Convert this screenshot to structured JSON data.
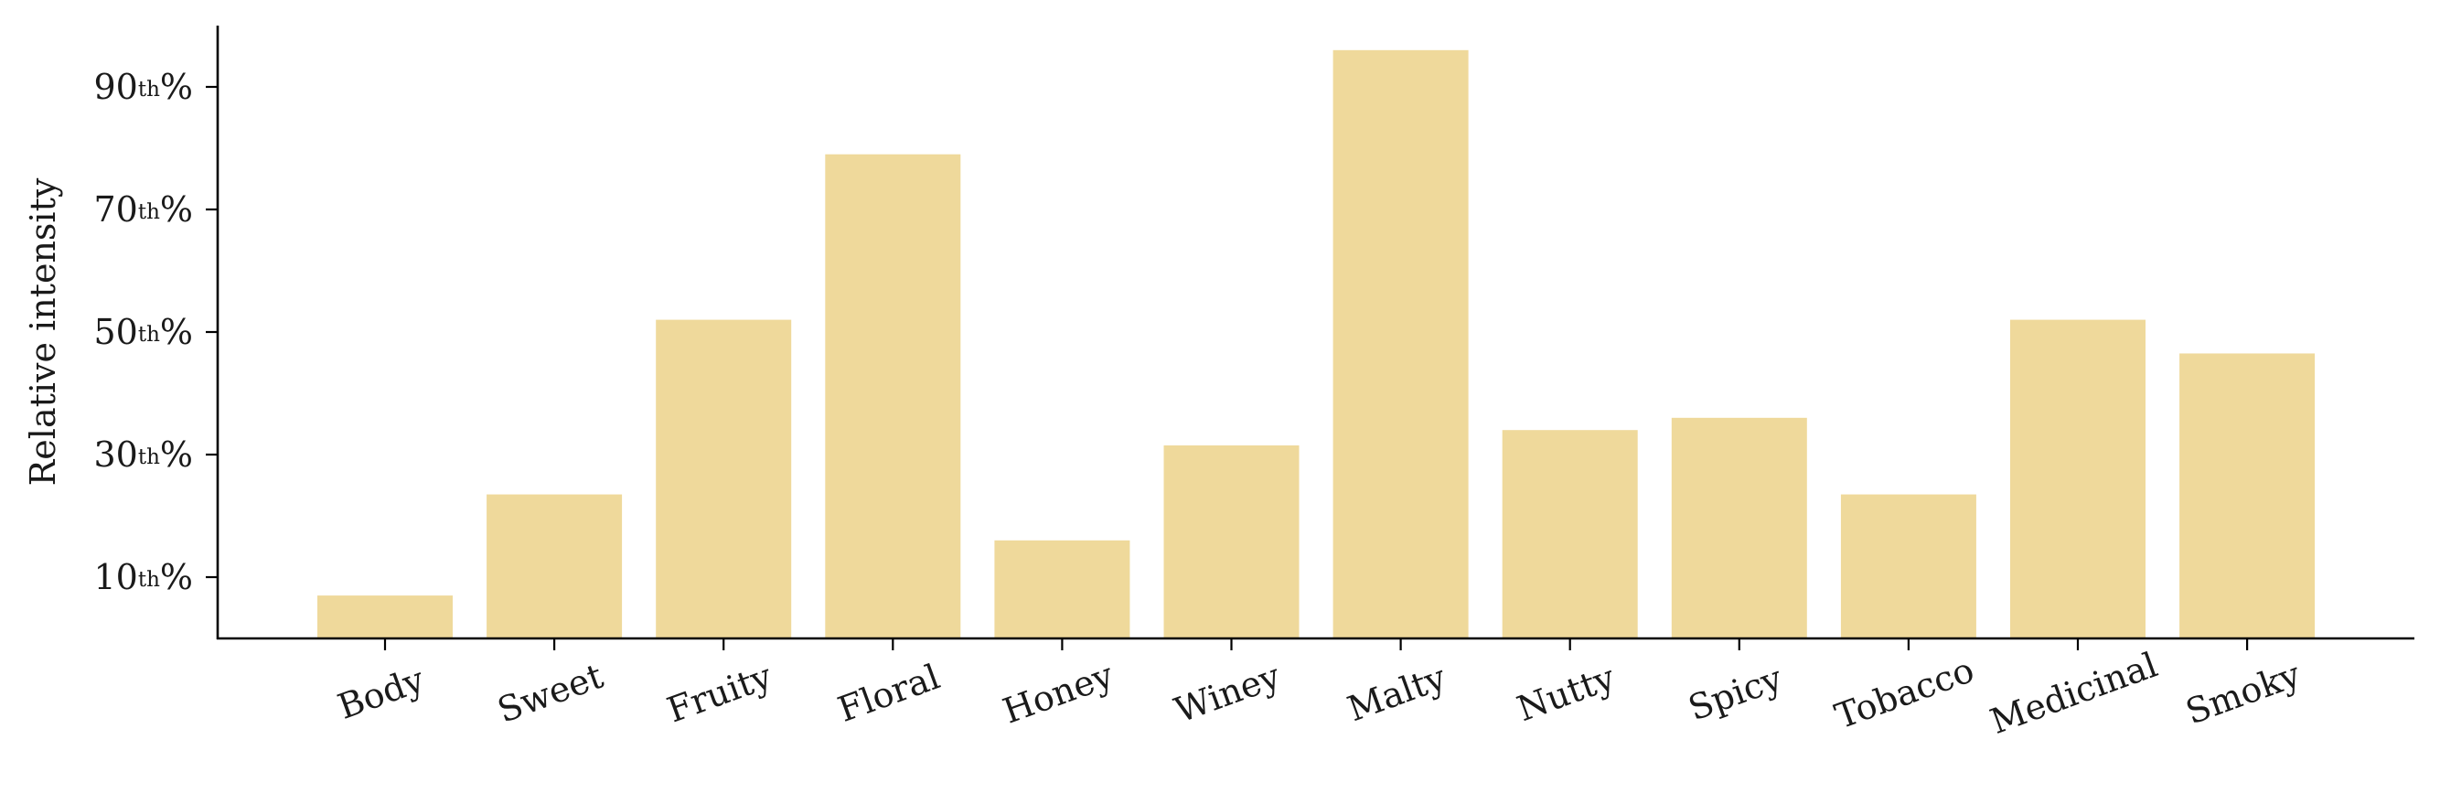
{
  "chart_data": {
    "type": "bar",
    "title": "",
    "xlabel": "",
    "ylabel": "Relative intensity",
    "categories": [
      "Body",
      "Sweet",
      "Fruity",
      "Floral",
      "Honey",
      "Winey",
      "Malty",
      "Nutty",
      "Spicy",
      "Tobacco",
      "Medicinal",
      "Smoky"
    ],
    "values": [
      0.7,
      2.35,
      5.2,
      7.9,
      1.6,
      3.15,
      9.6,
      3.4,
      3.6,
      2.35,
      5.2,
      4.65
    ],
    "yticks": [
      {
        "value": 1,
        "num": "10",
        "sup": "th",
        "suffix": "%"
      },
      {
        "value": 3,
        "num": "30",
        "sup": "th",
        "suffix": "%"
      },
      {
        "value": 5,
        "num": "50",
        "sup": "th",
        "suffix": "%"
      },
      {
        "value": 7,
        "num": "70",
        "sup": "th",
        "suffix": "%"
      },
      {
        "value": 9,
        "num": "90",
        "sup": "th",
        "suffix": "%"
      }
    ],
    "ylim": [
      0,
      10
    ],
    "bar_color": "#efd99b",
    "axis_color": "#000000",
    "grid": false,
    "legend": "none",
    "xtick_rotation": 20
  }
}
